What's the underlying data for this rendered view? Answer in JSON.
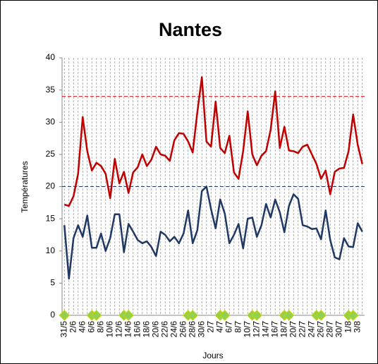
{
  "chart_data": {
    "type": "line",
    "title": "Nantes",
    "x_label": "Jours",
    "y_label": "Températures",
    "categories": [
      "31/5",
      null,
      "2/6",
      null,
      "4/6",
      null,
      "6/6",
      null,
      "8/6",
      null,
      "10/6",
      null,
      "12/6",
      null,
      "14/6",
      null,
      "16/6",
      null,
      "18/6",
      null,
      "20/6",
      null,
      "22/6",
      null,
      "24/6",
      null,
      "26/6",
      null,
      "28/6",
      null,
      "30/6",
      null,
      "2/7",
      null,
      "4/7",
      null,
      "6/7",
      null,
      "8/7",
      null,
      "10/7",
      null,
      "12/7",
      null,
      "14/7",
      null,
      "16/7",
      null,
      "18/7",
      null,
      "20/7",
      null,
      "22/7",
      null,
      "24/7",
      null,
      "26/7",
      null,
      "28/7",
      null,
      "30/7",
      null,
      "1/8",
      null,
      "3/8",
      null
    ],
    "series": [
      {
        "color": "#c00000",
        "values": [
          17.2,
          17,
          18.5,
          22,
          30.8,
          25.5,
          22.5,
          23.7,
          23.2,
          22,
          18.2,
          24.3,
          20.5,
          22.3,
          19,
          22.2,
          23,
          25,
          23.2,
          24.2,
          26.2,
          25,
          24.8,
          24,
          27.2,
          28.3,
          28.2,
          27,
          25.3,
          31.5,
          37,
          27,
          26.2,
          33.2,
          26,
          25.2,
          27.9,
          22.2,
          21.2,
          25.5,
          31.7,
          25,
          23.3,
          24.8,
          25.5,
          28.8,
          34.8,
          26,
          29.3,
          25.6,
          25.5,
          25.2,
          26.2,
          26.5,
          25,
          23.5,
          21.2,
          22.5,
          18.8,
          22.3,
          22.8,
          22.9,
          25.5,
          31.2,
          26.5,
          23.5
        ]
      },
      {
        "color": "#1f3864",
        "values": [
          14,
          5.7,
          12,
          14,
          12.2,
          15.5,
          10.5,
          10.5,
          12.7,
          10,
          12,
          15.7,
          15.7,
          9.8,
          14.2,
          13,
          11.7,
          11.2,
          11.5,
          10.6,
          9.2,
          13,
          12.5,
          11.5,
          12.2,
          11.2,
          12.7,
          16.3,
          11.2,
          13.2,
          19.3,
          20,
          16.5,
          13.5,
          18,
          15.8,
          11.2,
          12.5,
          14.2,
          10.4,
          15,
          15.2,
          12.2,
          14,
          17.3,
          15.2,
          18,
          16,
          12.9,
          17,
          18.8,
          18.1,
          14,
          13.8,
          13.4,
          13.5,
          11.8,
          16.3,
          11.7,
          9,
          8.7,
          12,
          10.7,
          10.6,
          14.3,
          13
        ]
      },
      {
        "color": "#92d050",
        "marker": "diamond",
        "values": [
          0,
          null,
          null,
          null,
          null,
          null,
          0,
          0,
          null,
          null,
          null,
          null,
          null,
          0,
          0,
          null,
          null,
          null,
          null,
          null,
          null,
          null,
          null,
          null,
          null,
          null,
          null,
          0,
          0,
          null,
          null,
          null,
          null,
          null,
          0,
          0,
          null,
          null,
          null,
          null,
          null,
          0,
          0,
          null,
          null,
          null,
          null,
          null,
          0,
          0,
          null,
          null,
          null,
          null,
          null,
          0,
          0,
          null,
          null,
          null,
          null,
          null,
          0,
          0,
          null,
          null
        ]
      }
    ],
    "reference_lines": [
      {
        "value": 34,
        "color": "#c00000"
      },
      {
        "value": 20,
        "color": "#1f3864"
      }
    ],
    "ylim": [
      0,
      40
    ],
    "yticks": [
      0,
      5,
      10,
      15,
      20,
      25,
      30,
      35,
      40
    ],
    "grid": true
  }
}
